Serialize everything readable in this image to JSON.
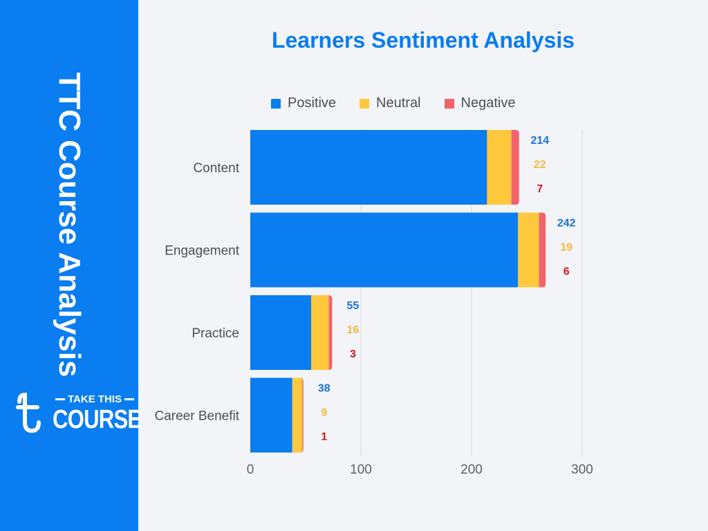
{
  "sidebar": {
    "title": "TTC Course Analysis",
    "logo": {
      "top_text": "TAKE THIS",
      "bottom_text": "COURSE",
      "icon": "t-letter-icon"
    }
  },
  "chart_data": {
    "type": "bar",
    "orientation": "horizontal",
    "stacked": true,
    "title": "Learners Sentiment Analysis",
    "categories": [
      "Content",
      "Engagement",
      "Practice",
      "Career Benefit"
    ],
    "series": [
      {
        "name": "Positive",
        "color": "#0a7df0",
        "label_color": "#1a73d1",
        "values": [
          214,
          242,
          55,
          38
        ]
      },
      {
        "name": "Neutral",
        "color": "#ffc83d",
        "label_color": "#f5b940",
        "values": [
          22,
          19,
          16,
          9
        ]
      },
      {
        "name": "Negative",
        "color": "#f2636b",
        "label_color": "#d9141c",
        "values": [
          7,
          6,
          3,
          1
        ]
      }
    ],
    "xlim": [
      0,
      300
    ],
    "xticks": [
      0,
      100,
      200,
      300
    ],
    "grid": true,
    "legend": "top-center"
  }
}
